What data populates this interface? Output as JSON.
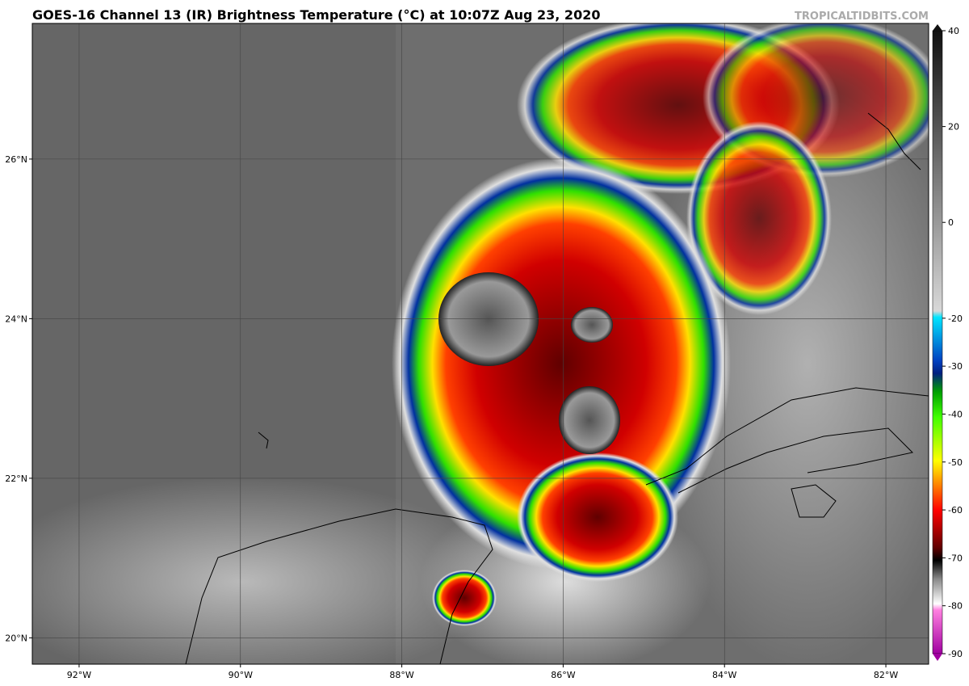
{
  "header": {
    "title": "GOES-16 Channel 13 (IR) Brightness Temperature (°C) at 10:07Z Aug 23, 2020",
    "credit": "TROPICALTIDBITS.COM"
  },
  "map": {
    "xlim": [
      -92.58,
      -81.47
    ],
    "ylim": [
      19.67,
      27.7
    ],
    "xticks": [
      {
        "value": -92,
        "label": "92°W"
      },
      {
        "value": -90,
        "label": "90°W"
      },
      {
        "value": -88,
        "label": "88°W"
      },
      {
        "value": -86,
        "label": "86°W"
      },
      {
        "value": -84,
        "label": "84°W"
      },
      {
        "value": -82,
        "label": "82°W"
      }
    ],
    "yticks": [
      {
        "value": 20,
        "label": "20°N"
      },
      {
        "value": 22,
        "label": "22°N"
      },
      {
        "value": 24,
        "label": "24°N"
      },
      {
        "value": 26,
        "label": "26°N"
      }
    ]
  },
  "colorbar": {
    "ylim": [
      -90,
      40
    ],
    "yticks": [
      40,
      20,
      0,
      -20,
      -30,
      -40,
      -50,
      -60,
      -70,
      -80,
      -90
    ]
  }
}
